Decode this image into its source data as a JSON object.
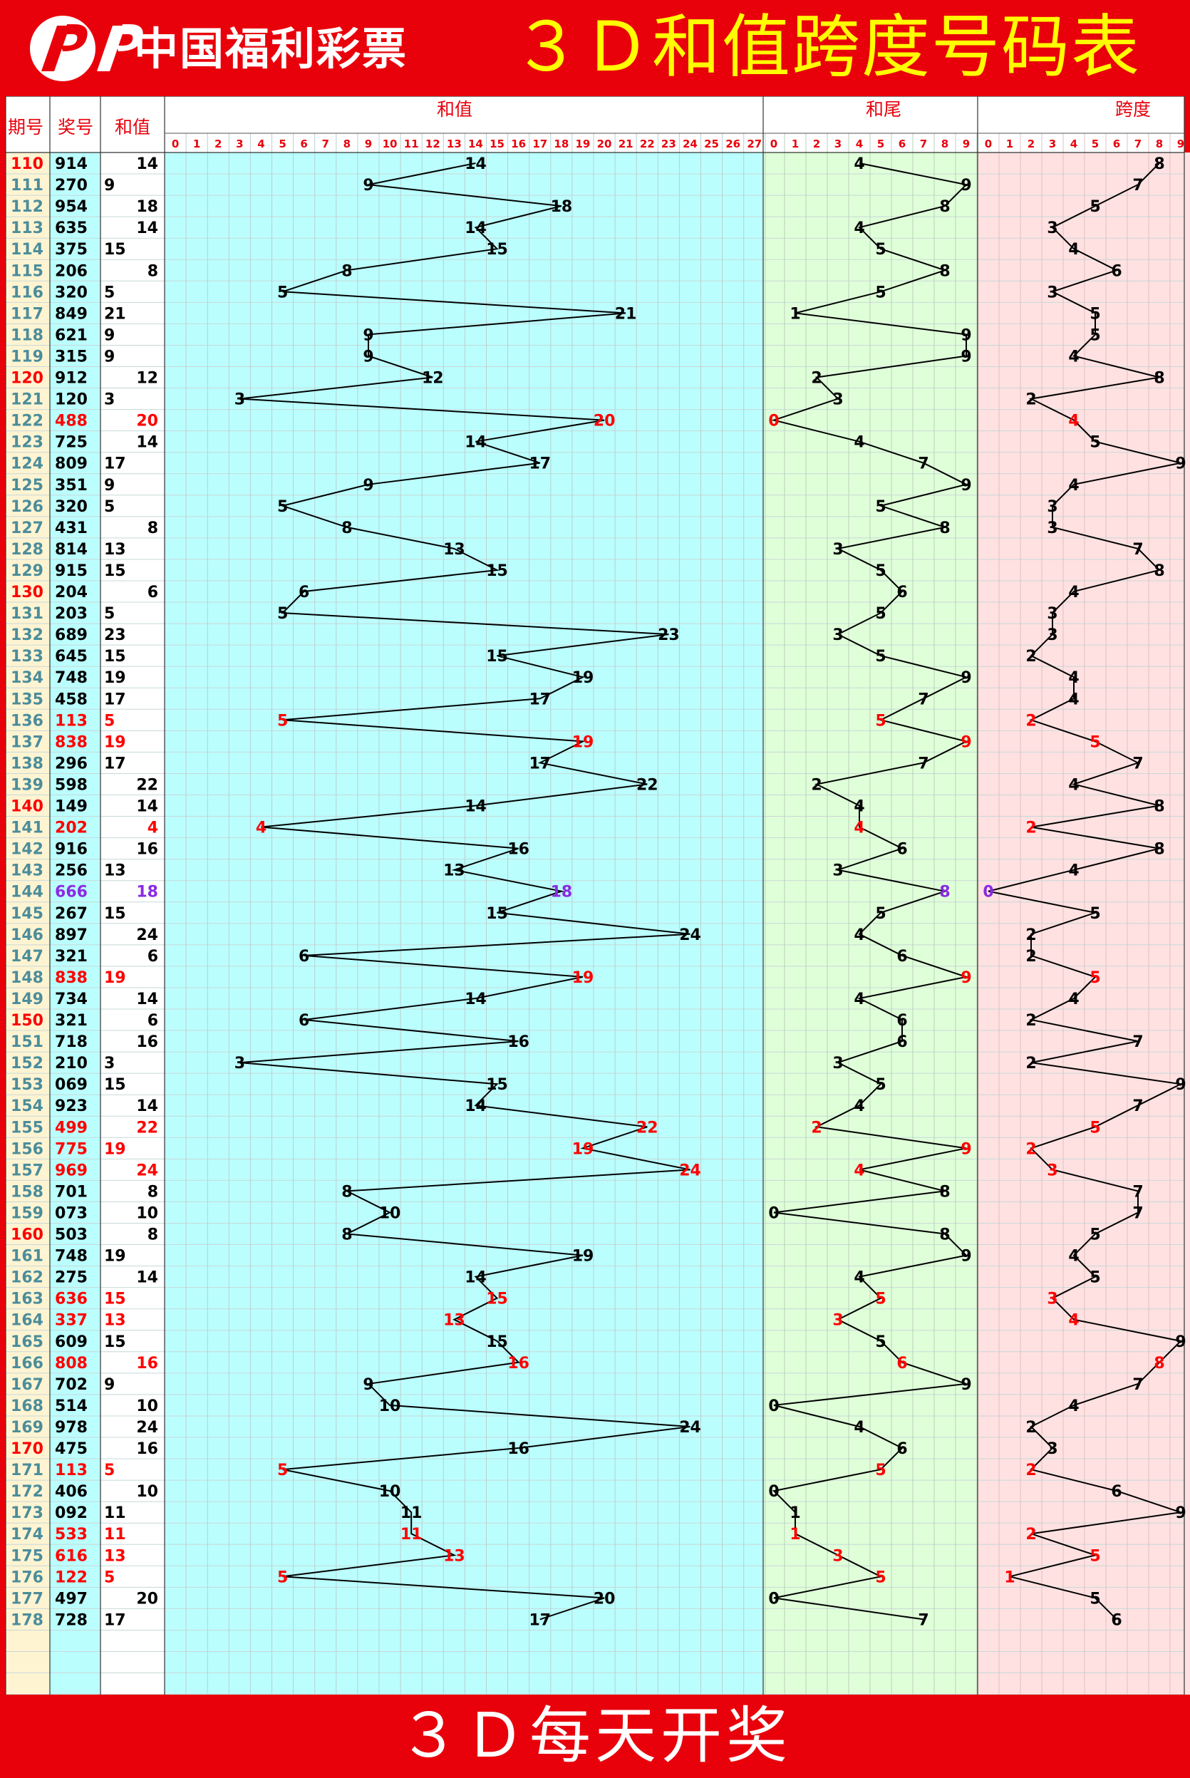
{
  "header": {
    "brand": "中国福利彩票",
    "title": "３Ｄ和值跨度号码表"
  },
  "footer": {
    "text": "３Ｄ每天开奖"
  },
  "colors": {
    "background": "#e8000b",
    "title": "#ffff00",
    "sum_zone": "#bbfefe",
    "tail_zone": "#dfffd9",
    "span_zone": "#ffe1e1",
    "issue_col": "#fff4d2",
    "draw_col": "#bbfefe",
    "highlight_red": "#ff0000",
    "highlight_purple": "#8a2be2",
    "issue_teal": "#4b8d9b"
  },
  "table": {
    "col_headers": {
      "issue": "期号",
      "draw": "奖号",
      "sum": "和值",
      "sum_zone": "和值",
      "tail_zone": "和尾",
      "span_zone": "跨度"
    },
    "sum_ticks": [
      "0",
      "1",
      "2",
      "3",
      "4",
      "5",
      "6",
      "7",
      "8",
      "9",
      "10",
      "11",
      "12",
      "13",
      "14",
      "15",
      "16",
      "17",
      "18",
      "19",
      "20",
      "21",
      "22",
      "23",
      "24",
      "25",
      "26",
      "27"
    ],
    "digit_ticks": [
      "0",
      "1",
      "2",
      "3",
      "4",
      "5",
      "6",
      "7",
      "8",
      "9"
    ]
  },
  "chart_data": {
    "type": "line",
    "title": "３Ｄ和值跨度号码表",
    "rows": [
      {
        "issue": "110",
        "draw": "914",
        "sum": 14,
        "tail": 4,
        "span": 8,
        "issue_red": true,
        "color": "black"
      },
      {
        "issue": "111",
        "draw": "270",
        "sum": 9,
        "tail": 9,
        "span": 7,
        "issue_red": false,
        "color": "black"
      },
      {
        "issue": "112",
        "draw": "954",
        "sum": 18,
        "tail": 8,
        "span": 5,
        "issue_red": false,
        "color": "black"
      },
      {
        "issue": "113",
        "draw": "635",
        "sum": 14,
        "tail": 4,
        "span": 3,
        "issue_red": false,
        "color": "black"
      },
      {
        "issue": "114",
        "draw": "375",
        "sum": 15,
        "tail": 5,
        "span": 4,
        "issue_red": false,
        "color": "black"
      },
      {
        "issue": "115",
        "draw": "206",
        "sum": 8,
        "tail": 8,
        "span": 6,
        "issue_red": false,
        "color": "black"
      },
      {
        "issue": "116",
        "draw": "320",
        "sum": 5,
        "tail": 5,
        "span": 3,
        "issue_red": false,
        "color": "black"
      },
      {
        "issue": "117",
        "draw": "849",
        "sum": 21,
        "tail": 1,
        "span": 5,
        "issue_red": false,
        "color": "black"
      },
      {
        "issue": "118",
        "draw": "621",
        "sum": 9,
        "tail": 9,
        "span": 5,
        "issue_red": false,
        "color": "black"
      },
      {
        "issue": "119",
        "draw": "315",
        "sum": 9,
        "tail": 9,
        "span": 4,
        "issue_red": false,
        "color": "black"
      },
      {
        "issue": "120",
        "draw": "912",
        "sum": 12,
        "tail": 2,
        "span": 8,
        "issue_red": true,
        "color": "black"
      },
      {
        "issue": "121",
        "draw": "120",
        "sum": 3,
        "tail": 3,
        "span": 2,
        "issue_red": false,
        "color": "black"
      },
      {
        "issue": "122",
        "draw": "488",
        "sum": 20,
        "tail": 0,
        "span": 4,
        "issue_red": false,
        "color": "red"
      },
      {
        "issue": "123",
        "draw": "725",
        "sum": 14,
        "tail": 4,
        "span": 5,
        "issue_red": false,
        "color": "black"
      },
      {
        "issue": "124",
        "draw": "809",
        "sum": 17,
        "tail": 7,
        "span": 9,
        "issue_red": false,
        "color": "black"
      },
      {
        "issue": "125",
        "draw": "351",
        "sum": 9,
        "tail": 9,
        "span": 4,
        "issue_red": false,
        "color": "black"
      },
      {
        "issue": "126",
        "draw": "320",
        "sum": 5,
        "tail": 5,
        "span": 3,
        "issue_red": false,
        "color": "black"
      },
      {
        "issue": "127",
        "draw": "431",
        "sum": 8,
        "tail": 8,
        "span": 3,
        "issue_red": false,
        "color": "black"
      },
      {
        "issue": "128",
        "draw": "814",
        "sum": 13,
        "tail": 3,
        "span": 7,
        "issue_red": false,
        "color": "black"
      },
      {
        "issue": "129",
        "draw": "915",
        "sum": 15,
        "tail": 5,
        "span": 8,
        "issue_red": false,
        "color": "black"
      },
      {
        "issue": "130",
        "draw": "204",
        "sum": 6,
        "tail": 6,
        "span": 4,
        "issue_red": true,
        "color": "black"
      },
      {
        "issue": "131",
        "draw": "203",
        "sum": 5,
        "tail": 5,
        "span": 3,
        "issue_red": false,
        "color": "black"
      },
      {
        "issue": "132",
        "draw": "689",
        "sum": 23,
        "tail": 3,
        "span": 3,
        "issue_red": false,
        "color": "black"
      },
      {
        "issue": "133",
        "draw": "645",
        "sum": 15,
        "tail": 5,
        "span": 2,
        "issue_red": false,
        "color": "black"
      },
      {
        "issue": "134",
        "draw": "748",
        "sum": 19,
        "tail": 9,
        "span": 4,
        "issue_red": false,
        "color": "black"
      },
      {
        "issue": "135",
        "draw": "458",
        "sum": 17,
        "tail": 7,
        "span": 4,
        "issue_red": false,
        "color": "black"
      },
      {
        "issue": "136",
        "draw": "113",
        "sum": 5,
        "tail": 5,
        "span": 2,
        "issue_red": false,
        "color": "red"
      },
      {
        "issue": "137",
        "draw": "838",
        "sum": 19,
        "tail": 9,
        "span": 5,
        "issue_red": false,
        "color": "red"
      },
      {
        "issue": "138",
        "draw": "296",
        "sum": 17,
        "tail": 7,
        "span": 7,
        "issue_red": false,
        "color": "black"
      },
      {
        "issue": "139",
        "draw": "598",
        "sum": 22,
        "tail": 2,
        "span": 4,
        "issue_red": false,
        "color": "black"
      },
      {
        "issue": "140",
        "draw": "149",
        "sum": 14,
        "tail": 4,
        "span": 8,
        "issue_red": true,
        "color": "black"
      },
      {
        "issue": "141",
        "draw": "202",
        "sum": 4,
        "tail": 4,
        "span": 2,
        "issue_red": false,
        "color": "red"
      },
      {
        "issue": "142",
        "draw": "916",
        "sum": 16,
        "tail": 6,
        "span": 8,
        "issue_red": false,
        "color": "black"
      },
      {
        "issue": "143",
        "draw": "256",
        "sum": 13,
        "tail": 3,
        "span": 4,
        "issue_red": false,
        "color": "black"
      },
      {
        "issue": "144",
        "draw": "666",
        "sum": 18,
        "tail": 8,
        "span": 0,
        "issue_red": false,
        "color": "purple"
      },
      {
        "issue": "145",
        "draw": "267",
        "sum": 15,
        "tail": 5,
        "span": 5,
        "issue_red": false,
        "color": "black"
      },
      {
        "issue": "146",
        "draw": "897",
        "sum": 24,
        "tail": 4,
        "span": 2,
        "issue_red": false,
        "color": "black"
      },
      {
        "issue": "147",
        "draw": "321",
        "sum": 6,
        "tail": 6,
        "span": 2,
        "issue_red": false,
        "color": "black"
      },
      {
        "issue": "148",
        "draw": "838",
        "sum": 19,
        "tail": 9,
        "span": 5,
        "issue_red": false,
        "color": "red"
      },
      {
        "issue": "149",
        "draw": "734",
        "sum": 14,
        "tail": 4,
        "span": 4,
        "issue_red": false,
        "color": "black"
      },
      {
        "issue": "150",
        "draw": "321",
        "sum": 6,
        "tail": 6,
        "span": 2,
        "issue_red": true,
        "color": "black"
      },
      {
        "issue": "151",
        "draw": "718",
        "sum": 16,
        "tail": 6,
        "span": 7,
        "issue_red": false,
        "color": "black"
      },
      {
        "issue": "152",
        "draw": "210",
        "sum": 3,
        "tail": 3,
        "span": 2,
        "issue_red": false,
        "color": "black"
      },
      {
        "issue": "153",
        "draw": "069",
        "sum": 15,
        "tail": 5,
        "span": 9,
        "issue_red": false,
        "color": "black"
      },
      {
        "issue": "154",
        "draw": "923",
        "sum": 14,
        "tail": 4,
        "span": 7,
        "issue_red": false,
        "color": "black"
      },
      {
        "issue": "155",
        "draw": "499",
        "sum": 22,
        "tail": 2,
        "span": 5,
        "issue_red": false,
        "color": "red"
      },
      {
        "issue": "156",
        "draw": "775",
        "sum": 19,
        "tail": 9,
        "span": 2,
        "issue_red": false,
        "color": "red"
      },
      {
        "issue": "157",
        "draw": "969",
        "sum": 24,
        "tail": 4,
        "span": 3,
        "issue_red": false,
        "color": "red"
      },
      {
        "issue": "158",
        "draw": "701",
        "sum": 8,
        "tail": 8,
        "span": 7,
        "issue_red": false,
        "color": "black"
      },
      {
        "issue": "159",
        "draw": "073",
        "sum": 10,
        "tail": 0,
        "span": 7,
        "issue_red": false,
        "color": "black"
      },
      {
        "issue": "160",
        "draw": "503",
        "sum": 8,
        "tail": 8,
        "span": 5,
        "issue_red": true,
        "color": "black"
      },
      {
        "issue": "161",
        "draw": "748",
        "sum": 19,
        "tail": 9,
        "span": 4,
        "issue_red": false,
        "color": "black"
      },
      {
        "issue": "162",
        "draw": "275",
        "sum": 14,
        "tail": 4,
        "span": 5,
        "issue_red": false,
        "color": "black"
      },
      {
        "issue": "163",
        "draw": "636",
        "sum": 15,
        "tail": 5,
        "span": 3,
        "issue_red": false,
        "color": "red"
      },
      {
        "issue": "164",
        "draw": "337",
        "sum": 13,
        "tail": 3,
        "span": 4,
        "issue_red": false,
        "color": "red"
      },
      {
        "issue": "165",
        "draw": "609",
        "sum": 15,
        "tail": 5,
        "span": 9,
        "issue_red": false,
        "color": "black"
      },
      {
        "issue": "166",
        "draw": "808",
        "sum": 16,
        "tail": 6,
        "span": 8,
        "issue_red": false,
        "color": "red"
      },
      {
        "issue": "167",
        "draw": "702",
        "sum": 9,
        "tail": 9,
        "span": 7,
        "issue_red": false,
        "color": "black"
      },
      {
        "issue": "168",
        "draw": "514",
        "sum": 10,
        "tail": 0,
        "span": 4,
        "issue_red": false,
        "color": "black"
      },
      {
        "issue": "169",
        "draw": "978",
        "sum": 24,
        "tail": 4,
        "span": 2,
        "issue_red": false,
        "color": "black"
      },
      {
        "issue": "170",
        "draw": "475",
        "sum": 16,
        "tail": 6,
        "span": 3,
        "issue_red": true,
        "color": "black"
      },
      {
        "issue": "171",
        "draw": "113",
        "sum": 5,
        "tail": 5,
        "span": 2,
        "issue_red": false,
        "color": "red"
      },
      {
        "issue": "172",
        "draw": "406",
        "sum": 10,
        "tail": 0,
        "span": 6,
        "issue_red": false,
        "color": "black"
      },
      {
        "issue": "173",
        "draw": "092",
        "sum": 11,
        "tail": 1,
        "span": 9,
        "issue_red": false,
        "color": "black"
      },
      {
        "issue": "174",
        "draw": "533",
        "sum": 11,
        "tail": 1,
        "span": 2,
        "issue_red": false,
        "color": "red"
      },
      {
        "issue": "175",
        "draw": "616",
        "sum": 13,
        "tail": 3,
        "span": 5,
        "issue_red": false,
        "color": "red"
      },
      {
        "issue": "176",
        "draw": "122",
        "sum": 5,
        "tail": 5,
        "span": 1,
        "issue_red": false,
        "color": "red"
      },
      {
        "issue": "177",
        "draw": "497",
        "sum": 20,
        "tail": 0,
        "span": 5,
        "issue_red": false,
        "color": "black"
      },
      {
        "issue": "178",
        "draw": "728",
        "sum": 17,
        "tail": 7,
        "span": 6,
        "issue_red": false,
        "color": "black"
      }
    ]
  }
}
